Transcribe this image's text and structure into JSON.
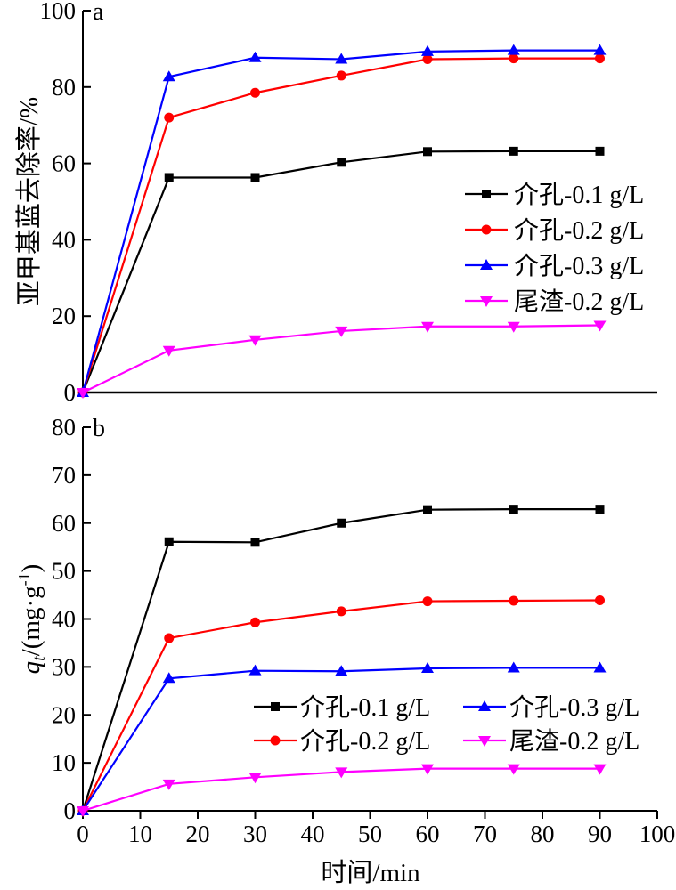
{
  "chart_data": [
    {
      "panel": "a",
      "type": "line",
      "ylabel": "亚甲基蓝去除率/%",
      "xlabel": "",
      "ylim": [
        0,
        100
      ],
      "yticks": [
        0,
        20,
        40,
        60,
        80,
        100
      ],
      "grid": false,
      "legend_position": "right-middle",
      "series": [
        {
          "name": "介孔-0.1 g/L",
          "color": "#000000",
          "marker": "square",
          "x": [
            0,
            15,
            30,
            45,
            60,
            75,
            90
          ],
          "y": [
            0,
            56.3,
            56.3,
            60.3,
            63.1,
            63.2,
            63.2
          ]
        },
        {
          "name": "介孔-0.2 g/L",
          "color": "#ff0000",
          "marker": "circle",
          "x": [
            0,
            15,
            30,
            45,
            60,
            75,
            90
          ],
          "y": [
            0,
            72,
            78.5,
            83,
            87.3,
            87.5,
            87.5
          ]
        },
        {
          "name": "介孔-0.3 g/L",
          "color": "#0000ff",
          "marker": "triangle-up",
          "x": [
            0,
            15,
            30,
            45,
            60,
            75,
            90
          ],
          "y": [
            0,
            82.7,
            87.7,
            87.3,
            89.3,
            89.6,
            89.6
          ]
        },
        {
          "name": "尾渣-0.2 g/L",
          "color": "#ff00ff",
          "marker": "triangle-down",
          "x": [
            0,
            15,
            30,
            45,
            60,
            75,
            90
          ],
          "y": [
            0,
            11,
            13.8,
            16.1,
            17.3,
            17.3,
            17.6
          ]
        }
      ]
    },
    {
      "panel": "b",
      "type": "line",
      "ylabel_main": "q",
      "ylabel_sub": "t",
      "ylabel_rest": "/(mg·g",
      "ylabel_sup": "-1",
      "ylabel_close": ")",
      "xlabel": "时间/min",
      "xlim": [
        0,
        100
      ],
      "ylim": [
        0,
        80
      ],
      "xticks": [
        0,
        10,
        20,
        30,
        40,
        50,
        60,
        70,
        80,
        90,
        100
      ],
      "yticks": [
        0,
        10,
        20,
        30,
        40,
        50,
        60,
        70,
        80
      ],
      "grid": false,
      "legend_position": "bottom-right, two columns",
      "series": [
        {
          "name": "介孔-0.1 g/L",
          "color": "#000000",
          "marker": "square",
          "x": [
            0,
            15,
            30,
            45,
            60,
            75,
            90
          ],
          "y": [
            0,
            56.1,
            56,
            60,
            62.8,
            62.9,
            62.9
          ]
        },
        {
          "name": "介孔-0.2 g/L",
          "color": "#ff0000",
          "marker": "circle",
          "x": [
            0,
            15,
            30,
            45,
            60,
            75,
            90
          ],
          "y": [
            0,
            36,
            39.3,
            41.6,
            43.7,
            43.8,
            43.9
          ]
        },
        {
          "name": "介孔-0.3 g/L",
          "color": "#0000ff",
          "marker": "triangle-up",
          "x": [
            0,
            15,
            30,
            45,
            60,
            75,
            90
          ],
          "y": [
            0,
            27.6,
            29.2,
            29.1,
            29.7,
            29.8,
            29.8
          ]
        },
        {
          "name": "尾渣-0.2 g/L",
          "color": "#ff00ff",
          "marker": "triangle-down",
          "x": [
            0,
            15,
            30,
            45,
            60,
            75,
            90
          ],
          "y": [
            0,
            5.6,
            7,
            8.1,
            8.8,
            8.8,
            8.8
          ]
        }
      ]
    }
  ]
}
